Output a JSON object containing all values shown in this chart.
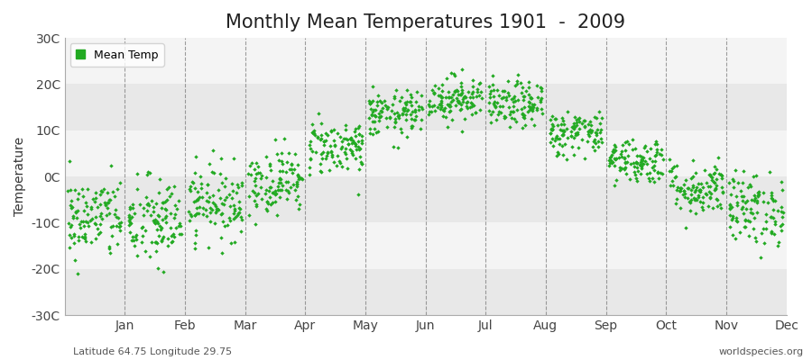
{
  "title": "Monthly Mean Temperatures 1901  -  2009",
  "ylabel": "Temperature",
  "xlabel_labels": [
    "Jan",
    "Feb",
    "Mar",
    "Apr",
    "May",
    "Jun",
    "Jul",
    "Aug",
    "Sep",
    "Oct",
    "Nov",
    "Dec"
  ],
  "ytick_labels": [
    "-30C",
    "-20C",
    "-10C",
    "0C",
    "10C",
    "20C",
    "30C"
  ],
  "ytick_vals": [
    -30,
    -20,
    -10,
    0,
    10,
    20,
    30
  ],
  "ylim": [
    -30,
    30
  ],
  "xlim": [
    0,
    12
  ],
  "monthly_means": [
    -9.0,
    -10.0,
    -5.5,
    -1.0,
    6.5,
    13.5,
    17.0,
    15.5,
    9.5,
    3.5,
    -2.5,
    -7.0
  ],
  "monthly_stds": [
    4.5,
    5.0,
    4.0,
    3.5,
    3.0,
    2.5,
    2.5,
    2.5,
    2.5,
    2.5,
    3.0,
    4.0
  ],
  "n_years": 109,
  "marker_color": "#22aa22",
  "marker_size": 5,
  "background_color": "#f2f2f2",
  "band_colors_above": "#f2f2f2",
  "band_colors_below": "#e6e6e6",
  "plot_bg": "#ffffff",
  "grid_color": "#777777",
  "title_fontsize": 15,
  "label_fontsize": 10,
  "tick_fontsize": 10,
  "bottom_left_text": "Latitude 64.75 Longitude 29.75",
  "bottom_right_text": "worldspecies.org",
  "legend_label": "Mean Temp",
  "vline_positions": [
    1,
    2,
    3,
    4,
    5,
    6,
    7,
    8,
    9,
    10,
    11
  ],
  "xtick_positions": [
    1,
    2,
    3,
    4,
    5,
    6,
    7,
    8,
    9,
    10,
    11,
    12
  ]
}
